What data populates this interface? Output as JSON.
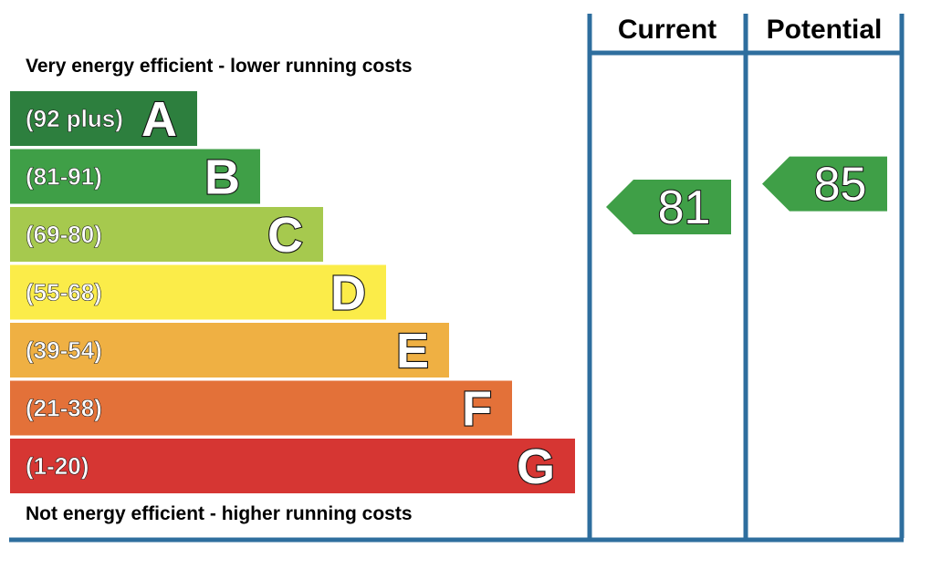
{
  "chart_data": {
    "type": "bar",
    "top_caption": "Very energy efficient - lower running costs",
    "bottom_caption": "Not energy efficient - higher running costs",
    "columns": {
      "current": "Current",
      "potential": "Potential"
    },
    "bands": [
      {
        "letter": "A",
        "range": "(92 plus)",
        "min": 92,
        "max": 100,
        "color": "#2d7f3e"
      },
      {
        "letter": "B",
        "range": "(81-91)",
        "min": 81,
        "max": 91,
        "color": "#3f9f47"
      },
      {
        "letter": "C",
        "range": "(69-80)",
        "min": 69,
        "max": 80,
        "color": "#a6c94e"
      },
      {
        "letter": "D",
        "range": "(55-68)",
        "min": 55,
        "max": 68,
        "color": "#fbec49"
      },
      {
        "letter": "E",
        "range": "(39-54)",
        "min": 39,
        "max": 54,
        "color": "#efb043"
      },
      {
        "letter": "F",
        "range": "(21-38)",
        "min": 21,
        "max": 38,
        "color": "#e37139"
      },
      {
        "letter": "G",
        "range": "(1-20)",
        "min": 1,
        "max": 20,
        "color": "#d63633"
      }
    ],
    "current": {
      "value": 81,
      "band": "B",
      "color": "#3f9f47"
    },
    "potential": {
      "value": 85,
      "band": "B",
      "color": "#3f9f47"
    },
    "frame_color": "#2e6e9e"
  }
}
